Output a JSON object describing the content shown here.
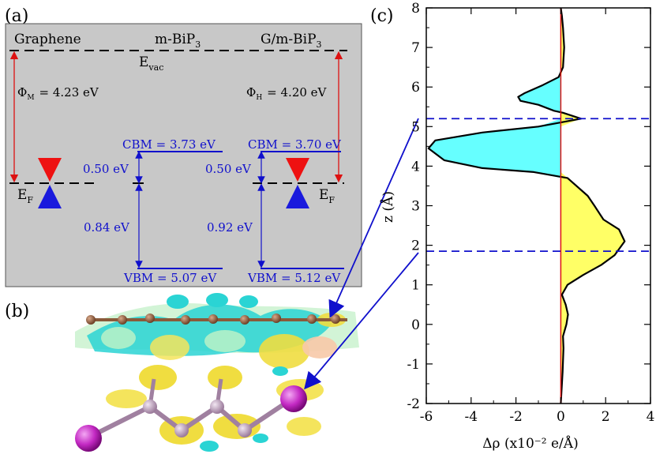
{
  "panel_a": {
    "label": "(a)",
    "col_graphene": "Graphene",
    "col_mbip3_base": "m-BiP",
    "col_mbip3_sub": "3",
    "col_hetero_base": "G/m-BiP",
    "col_hetero_sub": "3",
    "evac_base": "E",
    "evac_sub": "vac",
    "ef_base": "E",
    "ef_sub": "F",
    "phi_m_base": "Φ",
    "phi_m_sub": "M",
    "phi_m_value": "= 4.23 eV",
    "phi_h_base": "Φ",
    "phi_h_sub": "H",
    "phi_h_value": "= 4.20 eV",
    "cbm_mono": "CBM = 3.73 eV",
    "cbm_hetero": "CBM = 3.70 eV",
    "gap_mono_top": "0.50 eV",
    "gap_hetero_top": "0.50 eV",
    "gap_mono_bottom": "0.84 eV",
    "gap_hetero_bottom": "0.92 eV",
    "vbm_mono": "VBM = 5.07 eV",
    "vbm_hetero": "VBM = 5.12 eV",
    "colors": {
      "bg": "#c8c8c8",
      "blue": "#1010cc",
      "red": "#dd1111"
    }
  },
  "panel_b": {
    "label": "(b)"
  },
  "panel_c": {
    "label": "(c)",
    "xlabel": "Δρ (x10⁻² e/Å)",
    "ylabel": "z (Å)"
  },
  "chart_data": {
    "type": "area",
    "title": "",
    "xlabel": "Δρ (x10⁻² e/Å)",
    "ylabel": "z (Å)",
    "xlim": [
      -6,
      4
    ],
    "ylim": [
      -2,
      8
    ],
    "x_ticks": [
      "-6",
      "-4",
      "-2",
      "0",
      "2",
      "4"
    ],
    "y_ticks": [
      "-2",
      "-1",
      "0",
      "1",
      "2",
      "3",
      "4",
      "5",
      "6",
      "7",
      "8"
    ],
    "reference_line_x": 0,
    "interface_lines_z": [
      5.2,
      1.85
    ],
    "series": [
      {
        "name": "Δρ(z)",
        "points": [
          [
            0.0,
            -2.0
          ],
          [
            0.08,
            -1.2
          ],
          [
            0.12,
            -0.6
          ],
          [
            0.1,
            -0.3
          ],
          [
            0.25,
            0.0
          ],
          [
            0.32,
            0.25
          ],
          [
            0.22,
            0.5
          ],
          [
            0.05,
            0.75
          ],
          [
            0.3,
            1.0
          ],
          [
            1.0,
            1.25
          ],
          [
            1.8,
            1.5
          ],
          [
            2.4,
            1.75
          ],
          [
            2.85,
            2.1
          ],
          [
            2.6,
            2.4
          ],
          [
            1.9,
            2.65
          ],
          [
            1.5,
            3.0
          ],
          [
            1.2,
            3.25
          ],
          [
            0.3,
            3.7
          ],
          [
            -1.2,
            3.85
          ],
          [
            -3.5,
            3.95
          ],
          [
            -5.2,
            4.15
          ],
          [
            -5.9,
            4.45
          ],
          [
            -5.6,
            4.65
          ],
          [
            -3.5,
            4.85
          ],
          [
            -1.0,
            5.0
          ],
          [
            0.9,
            5.2
          ],
          [
            0.1,
            5.35
          ],
          [
            -0.3,
            5.4
          ],
          [
            -1.0,
            5.55
          ],
          [
            -1.8,
            5.65
          ],
          [
            -1.9,
            5.75
          ],
          [
            -1.6,
            5.85
          ],
          [
            -0.8,
            6.05
          ],
          [
            -0.1,
            6.25
          ],
          [
            0.1,
            6.5
          ],
          [
            0.15,
            7.0
          ],
          [
            0.1,
            7.5
          ],
          [
            0.05,
            7.8
          ],
          [
            0.0,
            8.0
          ]
        ]
      }
    ]
  }
}
